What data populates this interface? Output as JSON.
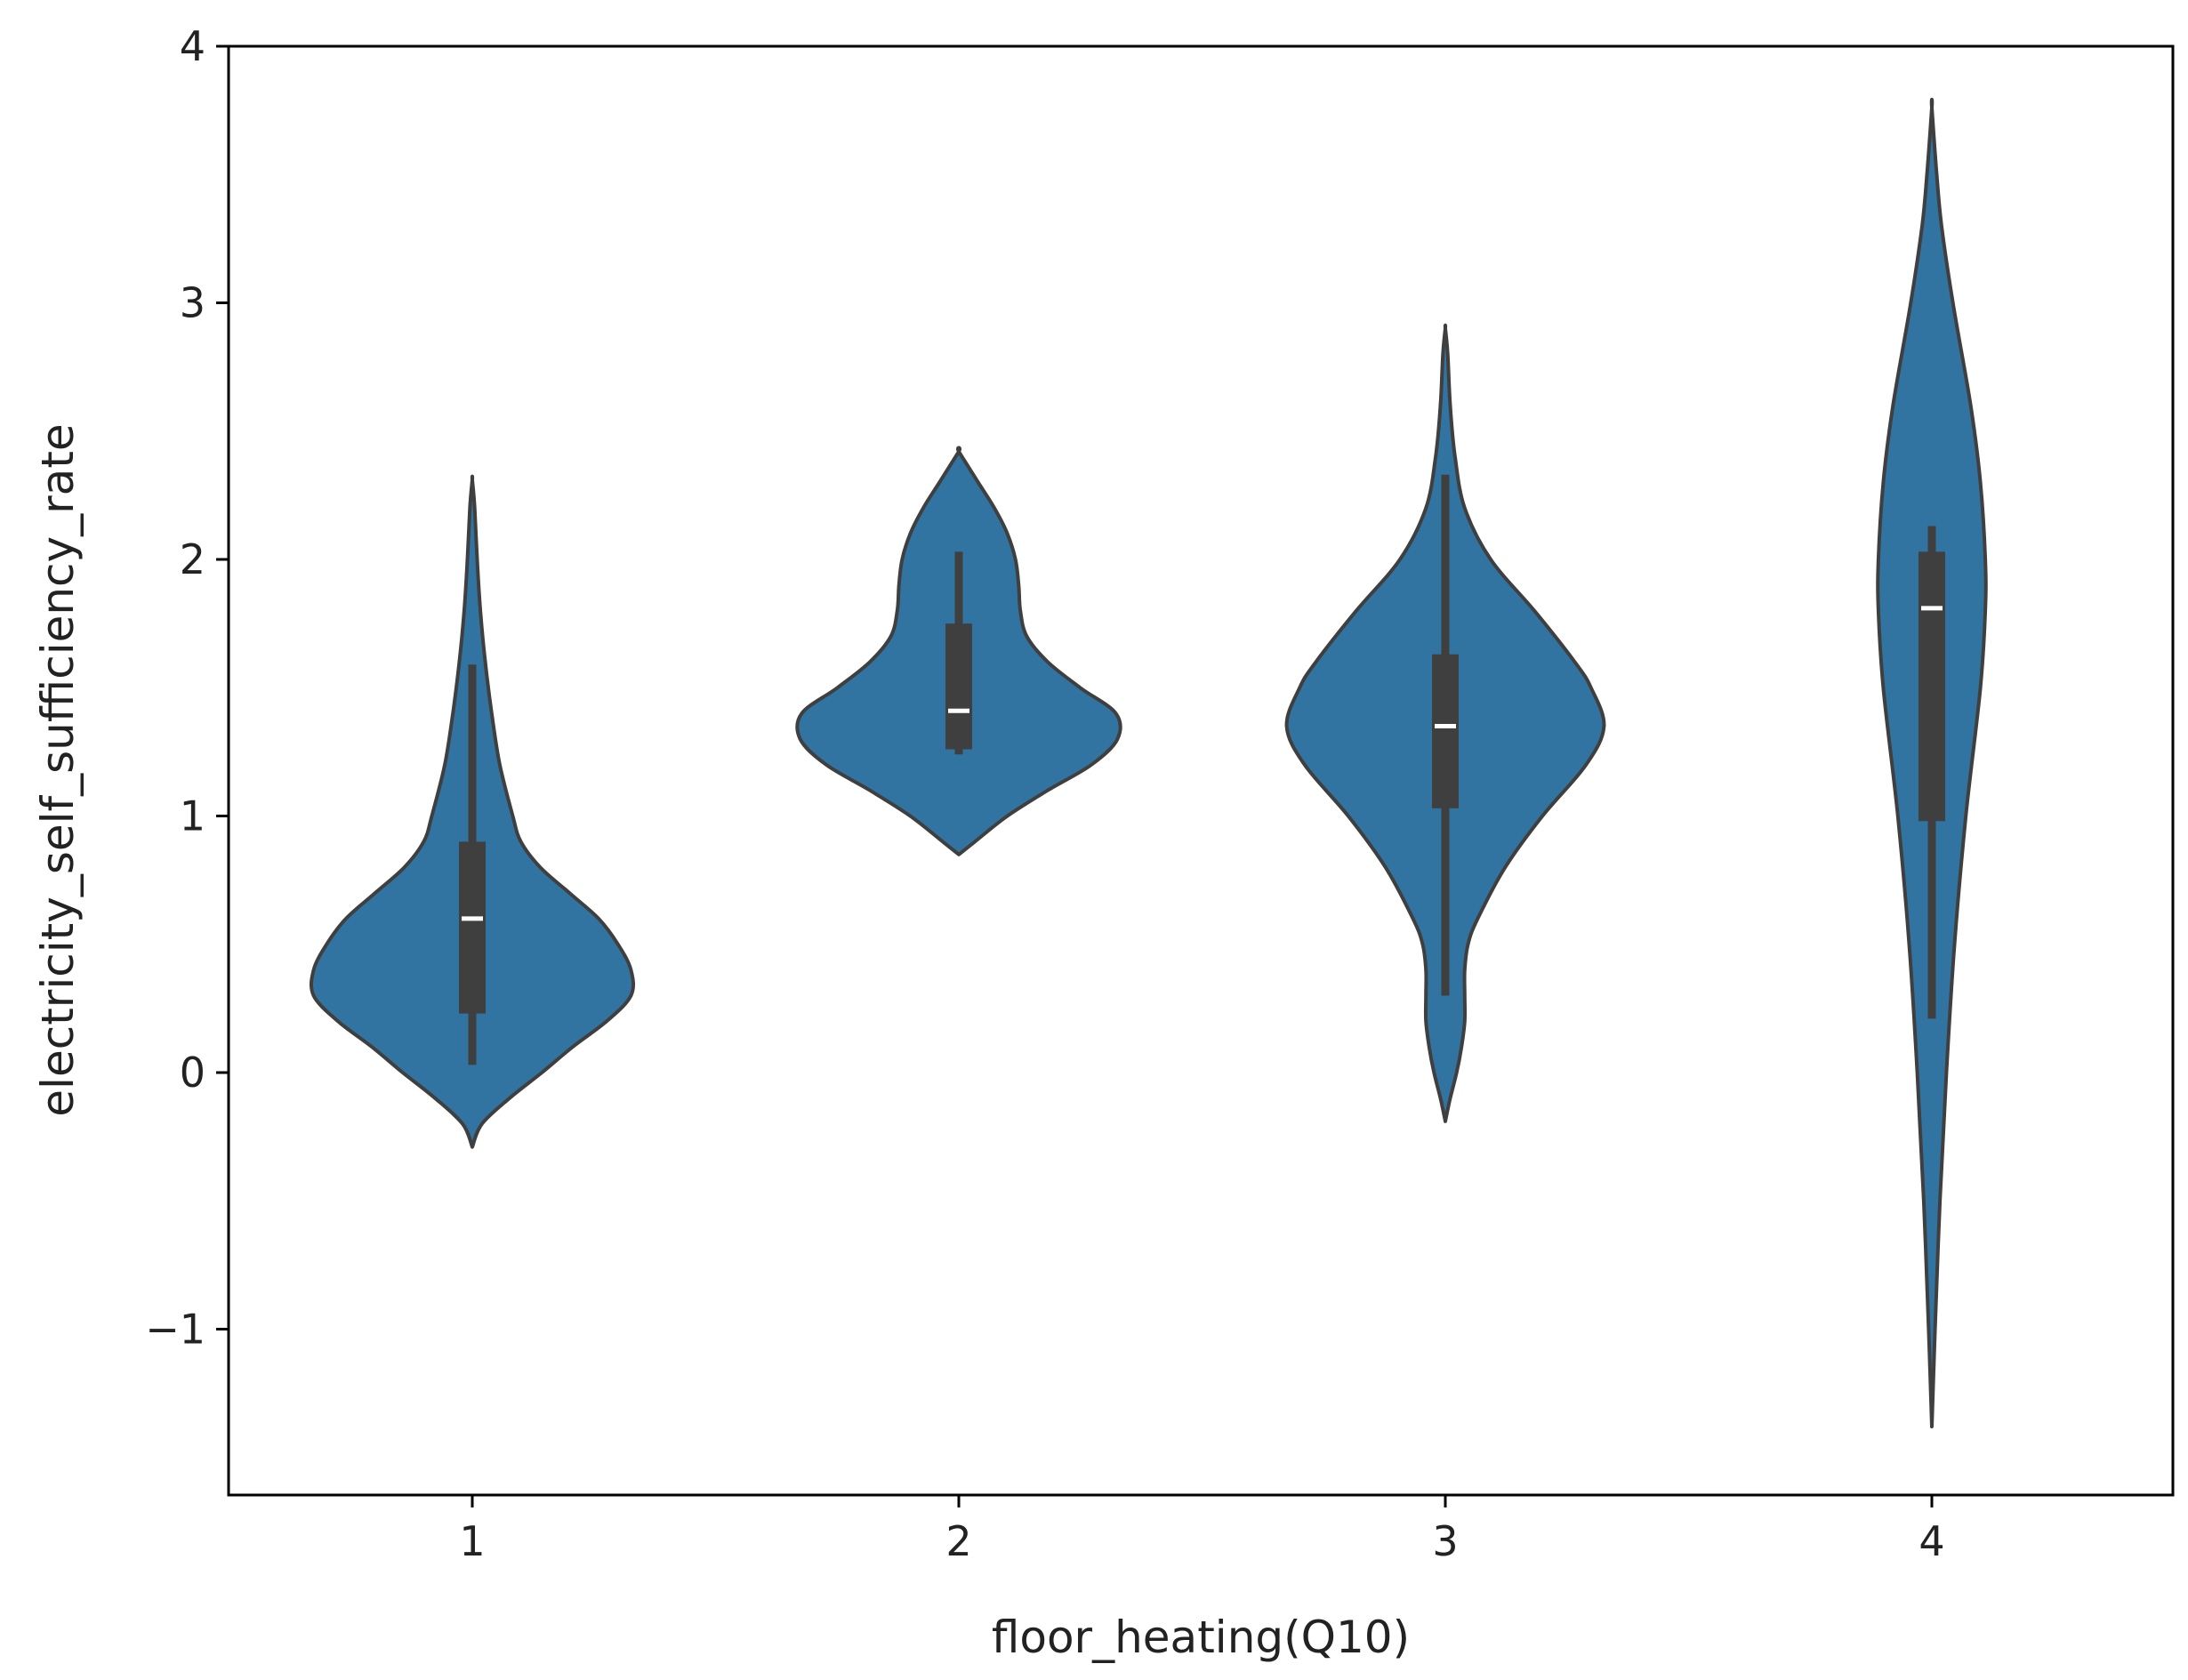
{
  "chart_data": {
    "type": "violin",
    "title": "",
    "xlabel": "floor_heating(Q10)",
    "ylabel": "electricity_self_sufficiency_rate",
    "ylim": [
      -1.65,
      4.0
    ],
    "yticks": [
      -1,
      0,
      1,
      2,
      3,
      4
    ],
    "ytick_labels": [
      "−1",
      "0",
      "1",
      "2",
      "3",
      "4"
    ],
    "categories": [
      "1",
      "2",
      "3",
      "4"
    ],
    "grid": false,
    "colors": {
      "violin_fill": "#3274a1",
      "violin_edge": "#3f3f3f",
      "box": "#3f3f3f",
      "median": "#ffffff"
    },
    "violins": [
      {
        "category": "1",
        "box": {
          "whisker_low": 0.03,
          "q1": 0.23,
          "median": 0.6,
          "q3": 0.9,
          "whisker_high": 1.59
        },
        "density": [
          [
            -0.29,
            0.0
          ],
          [
            -0.2,
            0.06
          ],
          [
            -0.1,
            0.23
          ],
          [
            0.0,
            0.43
          ],
          [
            0.1,
            0.62
          ],
          [
            0.2,
            0.83
          ],
          [
            0.3,
            0.98
          ],
          [
            0.4,
            0.98
          ],
          [
            0.5,
            0.9
          ],
          [
            0.6,
            0.78
          ],
          [
            0.7,
            0.6
          ],
          [
            0.8,
            0.42
          ],
          [
            0.9,
            0.3
          ],
          [
            1.0,
            0.25
          ],
          [
            1.2,
            0.17
          ],
          [
            1.4,
            0.12
          ],
          [
            1.6,
            0.08
          ],
          [
            1.8,
            0.05
          ],
          [
            2.0,
            0.03
          ],
          [
            2.2,
            0.015
          ],
          [
            2.31,
            0.0
          ]
        ]
      },
      {
        "category": "2",
        "box": {
          "whisker_low": 1.24,
          "q1": 1.26,
          "median": 1.41,
          "q3": 1.75,
          "whisker_high": 2.03
        },
        "density": [
          [
            0.85,
            0.0
          ],
          [
            0.9,
            0.1
          ],
          [
            1.0,
            0.3
          ],
          [
            1.1,
            0.55
          ],
          [
            1.2,
            0.82
          ],
          [
            1.3,
            0.98
          ],
          [
            1.4,
            0.97
          ],
          [
            1.5,
            0.75
          ],
          [
            1.6,
            0.55
          ],
          [
            1.7,
            0.42
          ],
          [
            1.8,
            0.38
          ],
          [
            1.9,
            0.37
          ],
          [
            2.0,
            0.35
          ],
          [
            2.1,
            0.3
          ],
          [
            2.2,
            0.22
          ],
          [
            2.3,
            0.12
          ],
          [
            2.42,
            0.0
          ]
        ]
      },
      {
        "category": "3",
        "box": {
          "whisker_low": 0.3,
          "q1": 1.03,
          "median": 1.35,
          "q3": 1.63,
          "whisker_high": 2.33
        },
        "density": [
          [
            -0.19,
            0.0
          ],
          [
            -0.1,
            0.03
          ],
          [
            0.0,
            0.07
          ],
          [
            0.1,
            0.1
          ],
          [
            0.2,
            0.12
          ],
          [
            0.3,
            0.12
          ],
          [
            0.4,
            0.12
          ],
          [
            0.5,
            0.14
          ],
          [
            0.6,
            0.2
          ],
          [
            0.8,
            0.37
          ],
          [
            1.0,
            0.6
          ],
          [
            1.2,
            0.87
          ],
          [
            1.35,
            0.98
          ],
          [
            1.5,
            0.9
          ],
          [
            1.6,
            0.8
          ],
          [
            1.8,
            0.55
          ],
          [
            2.0,
            0.28
          ],
          [
            2.2,
            0.12
          ],
          [
            2.4,
            0.06
          ],
          [
            2.6,
            0.03
          ],
          [
            2.8,
            0.015
          ],
          [
            2.9,
            0.0
          ]
        ]
      },
      {
        "category": "4",
        "box": {
          "whisker_low": 0.21,
          "q1": 0.98,
          "median": 1.81,
          "q3": 2.03,
          "whisker_high": 2.13
        },
        "density": [
          [
            -1.38,
            0.0
          ],
          [
            -1.0,
            0.02
          ],
          [
            -0.5,
            0.05
          ],
          [
            0.0,
            0.09
          ],
          [
            0.5,
            0.14
          ],
          [
            1.0,
            0.21
          ],
          [
            1.5,
            0.3
          ],
          [
            1.8,
            0.33
          ],
          [
            2.0,
            0.33
          ],
          [
            2.3,
            0.3
          ],
          [
            2.6,
            0.24
          ],
          [
            3.0,
            0.13
          ],
          [
            3.3,
            0.06
          ],
          [
            3.5,
            0.03
          ],
          [
            3.76,
            0.0
          ]
        ]
      }
    ]
  }
}
